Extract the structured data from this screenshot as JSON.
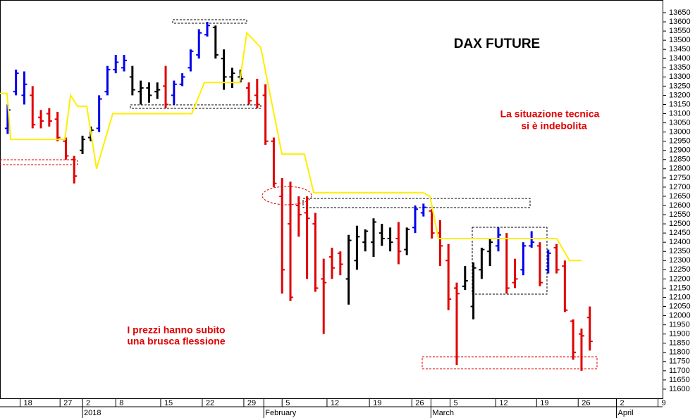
{
  "chart_data": {
    "type": "ohlc",
    "title": "DAX FUTURE",
    "annotations": [
      {
        "lines": [
          "La situazione tecnica",
          "si è indebolita"
        ]
      },
      {
        "lines": [
          "I prezzi hanno subito",
          "una brusca flessione"
        ]
      }
    ],
    "xlim": [
      -9.92,
      69.75
    ],
    "ylim": [
      11550,
      13719
    ],
    "yticks": [
      11600,
      11650,
      11700,
      11750,
      11800,
      11850,
      11900,
      11950,
      12000,
      12050,
      12100,
      12150,
      12200,
      12250,
      12300,
      12350,
      12400,
      12450,
      12500,
      12550,
      12600,
      12650,
      12700,
      12750,
      12800,
      12850,
      12900,
      12950,
      13000,
      13050,
      13100,
      13150,
      13200,
      13250,
      13300,
      13350,
      13400,
      13450,
      13500,
      13550,
      13600,
      13650
    ],
    "xticks": [
      {
        "value": -7.5,
        "label": "18"
      },
      {
        "value": -2.7,
        "label": "27"
      },
      {
        "value": 0,
        "label": "2"
      },
      {
        "value": 4,
        "label": "8"
      },
      {
        "value": 9.4,
        "label": "15"
      },
      {
        "value": 14.4,
        "label": "22"
      },
      {
        "value": 19.4,
        "label": "29"
      },
      {
        "value": 24,
        "label": "5"
      },
      {
        "value": 29.4,
        "label": "12"
      },
      {
        "value": 34.5,
        "label": "19"
      },
      {
        "value": 39.6,
        "label": "26"
      },
      {
        "value": 44.2,
        "label": "5"
      },
      {
        "value": 49.7,
        "label": "12"
      },
      {
        "value": 54.6,
        "label": "19"
      },
      {
        "value": 59.6,
        "label": "26"
      },
      {
        "value": 64.2,
        "label": "2"
      },
      {
        "value": 69.2,
        "label": "9"
      }
    ],
    "month_ticks": [
      {
        "value": 0,
        "label": "2018"
      },
      {
        "value": 21.8,
        "label": "February"
      },
      {
        "value": 41.9,
        "label": "March"
      },
      {
        "value": 64.2,
        "label": "April"
      }
    ],
    "bars": {
      "x": [
        -9,
        -8,
        -7,
        -6,
        -5,
        -4,
        -3,
        -2,
        -1,
        0,
        1,
        2,
        3,
        4,
        5,
        6,
        7,
        8,
        9,
        10,
        11,
        12,
        13,
        14,
        15,
        16,
        17,
        18,
        19,
        20,
        21,
        22,
        23,
        24,
        25,
        26,
        27,
        28,
        29,
        30,
        31,
        32,
        33,
        34,
        35,
        36,
        37,
        38,
        39,
        40,
        41,
        42,
        43,
        44,
        45,
        46,
        47,
        48,
        49,
        50,
        51,
        52,
        53,
        54,
        55,
        56,
        57,
        58,
        59,
        60,
        61
      ],
      "open": [
        13020,
        13220,
        13200,
        13200,
        13080,
        13100,
        13070,
        12950,
        12850,
        12900,
        12970,
        13020,
        13220,
        13340,
        13350,
        13300,
        13220,
        13240,
        13220,
        13250,
        13200,
        13260,
        13350,
        13420,
        13530,
        13570,
        13400,
        13300,
        13300,
        13240,
        13200,
        13200,
        12950,
        12650,
        12500,
        12600,
        12560,
        12500,
        12200,
        12320,
        12340,
        12200,
        12300,
        12400,
        12400,
        12450,
        12420,
        12420,
        12360,
        12480,
        12560,
        12570,
        12450,
        12300,
        12150,
        12160,
        12050,
        12250,
        12350,
        12380,
        12420,
        12180,
        12250,
        12380,
        12380,
        12250,
        12370,
        12270,
        11970,
        11900,
        11990
      ],
      "high": [
        13150,
        13340,
        13330,
        13250,
        13120,
        13130,
        13110,
        12970,
        12870,
        12980,
        13030,
        13200,
        13360,
        13420,
        13420,
        13360,
        13280,
        13270,
        13270,
        13360,
        13280,
        13320,
        13450,
        13560,
        13600,
        13580,
        13450,
        13350,
        13340,
        13270,
        13290,
        13260,
        12970,
        12750,
        12730,
        12650,
        12650,
        12560,
        12310,
        12370,
        12350,
        12440,
        12490,
        12470,
        12530,
        12500,
        12480,
        12510,
        12480,
        12600,
        12610,
        12580,
        12520,
        12390,
        12180,
        12270,
        12290,
        12370,
        12420,
        12480,
        12450,
        12310,
        12400,
        12460,
        12400,
        12360,
        12390,
        12300,
        11980,
        11930,
        12050
      ],
      "low": [
        12990,
        13200,
        13150,
        13020,
        13020,
        13030,
        12950,
        12850,
        12720,
        12880,
        12950,
        13000,
        13200,
        13320,
        13330,
        13200,
        13150,
        13160,
        13180,
        13130,
        13150,
        13250,
        13330,
        13400,
        13520,
        13400,
        13230,
        13240,
        13270,
        13150,
        13130,
        12930,
        12700,
        12120,
        12080,
        12430,
        12200,
        12130,
        11900,
        12200,
        12220,
        12060,
        12250,
        12350,
        12320,
        12380,
        12350,
        12280,
        12330,
        12450,
        12540,
        12420,
        12270,
        12030,
        11730,
        12140,
        11980,
        12200,
        12270,
        12350,
        12120,
        12150,
        12220,
        12370,
        12160,
        12230,
        12230,
        12020,
        11760,
        11700,
        11810
      ],
      "close": [
        13120,
        13320,
        13260,
        13040,
        13060,
        13060,
        12970,
        12870,
        12760,
        12960,
        13010,
        13180,
        13340,
        13380,
        13390,
        13230,
        13240,
        13200,
        13230,
        13150,
        13260,
        13300,
        13440,
        13540,
        13580,
        13420,
        13300,
        13320,
        13290,
        13170,
        13150,
        12950,
        12720,
        12250,
        12100,
        12550,
        12530,
        12150,
        12180,
        12260,
        12280,
        12410,
        12430,
        12460,
        12510,
        12420,
        12400,
        12350,
        12470,
        12580,
        12590,
        12450,
        12380,
        12090,
        12120,
        12190,
        12260,
        12360,
        12400,
        12440,
        12150,
        12200,
        12380,
        12400,
        12180,
        12340,
        12250,
        12030,
        11800,
        11890,
        11860
      ],
      "colors": [
        "#0000ee",
        "#0000ee",
        "#0000ee",
        "#e00000",
        "#e00000",
        "#e00000",
        "#e00000",
        "#e00000",
        "#e00000",
        "#000000",
        "#000000",
        "#0000ee",
        "#0000ee",
        "#0000ee",
        "#0000ee",
        "#000000",
        "#000000",
        "#000000",
        "#000000",
        "#e00000",
        "#0000ee",
        "#0000ee",
        "#0000ee",
        "#0000ee",
        "#0000ee",
        "#000000",
        "#000000",
        "#000000",
        "#000000",
        "#e00000",
        "#e00000",
        "#e00000",
        "#e00000",
        "#e00000",
        "#e00000",
        "#e00000",
        "#e00000",
        "#e00000",
        "#e00000",
        "#e00000",
        "#e00000",
        "#000000",
        "#000000",
        "#000000",
        "#000000",
        "#000000",
        "#000000",
        "#e00000",
        "#000000",
        "#0000ee",
        "#0000ee",
        "#e00000",
        "#e00000",
        "#e00000",
        "#e00000",
        "#000000",
        "#000000",
        "#000000",
        "#000000",
        "#0000ee",
        "#e00000",
        "#e00000",
        "#0000ee",
        "#0000ee",
        "#e00000",
        "#0000ee",
        "#e00000",
        "#e00000",
        "#e00000",
        "#e00000",
        "#e00000"
      ]
    },
    "stop_line": {
      "color": "#ffee00",
      "x": [
        -9.92,
        -9.07,
        -8.64,
        -2.12,
        -1.44,
        -0.59,
        0.51,
        1.69,
        3.64,
        13.14,
        14.66,
        18.9,
        19.75,
        21.44,
        23.98,
        26.69,
        27.8,
        40.93,
        41.78,
        42.8,
        57.03,
        58.56,
        60
      ],
      "values": [
        13210,
        13210,
        12960,
        12960,
        13200,
        13140,
        13140,
        12800,
        13100,
        13100,
        13270,
        13270,
        13540,
        13460,
        12880,
        12880,
        12670,
        12670,
        12650,
        12420,
        12420,
        12300,
        12300
      ]
    }
  }
}
